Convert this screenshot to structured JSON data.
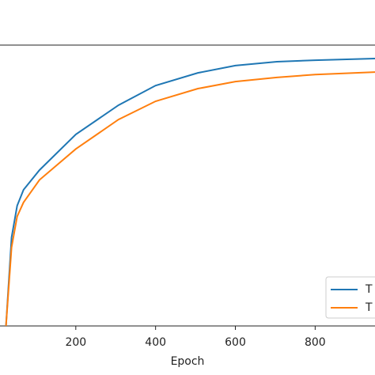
{
  "chart_data": {
    "type": "line",
    "x_label": "Epoch",
    "x": [
      25,
      39,
      53,
      69,
      109,
      200,
      307,
      400,
      506,
      600,
      704,
      800,
      950
    ],
    "series": [
      {
        "name": "T",
        "color": "#1f77b4",
        "values": [
          0,
          0.315,
          0.428,
          0.485,
          0.555,
          0.682,
          0.786,
          0.856,
          0.901,
          0.927,
          0.941,
          0.946,
          0.952
        ]
      },
      {
        "name": "T",
        "color": "#ff7f0e",
        "values": [
          0,
          0.28,
          0.39,
          0.44,
          0.52,
          0.63,
          0.735,
          0.8,
          0.845,
          0.87,
          0.885,
          0.895,
          0.904
        ]
      }
    ],
    "xlim": [
      10,
      950
    ],
    "xticks": [
      200,
      400,
      600,
      800
    ],
    "ylim": [
      0,
      1
    ]
  }
}
